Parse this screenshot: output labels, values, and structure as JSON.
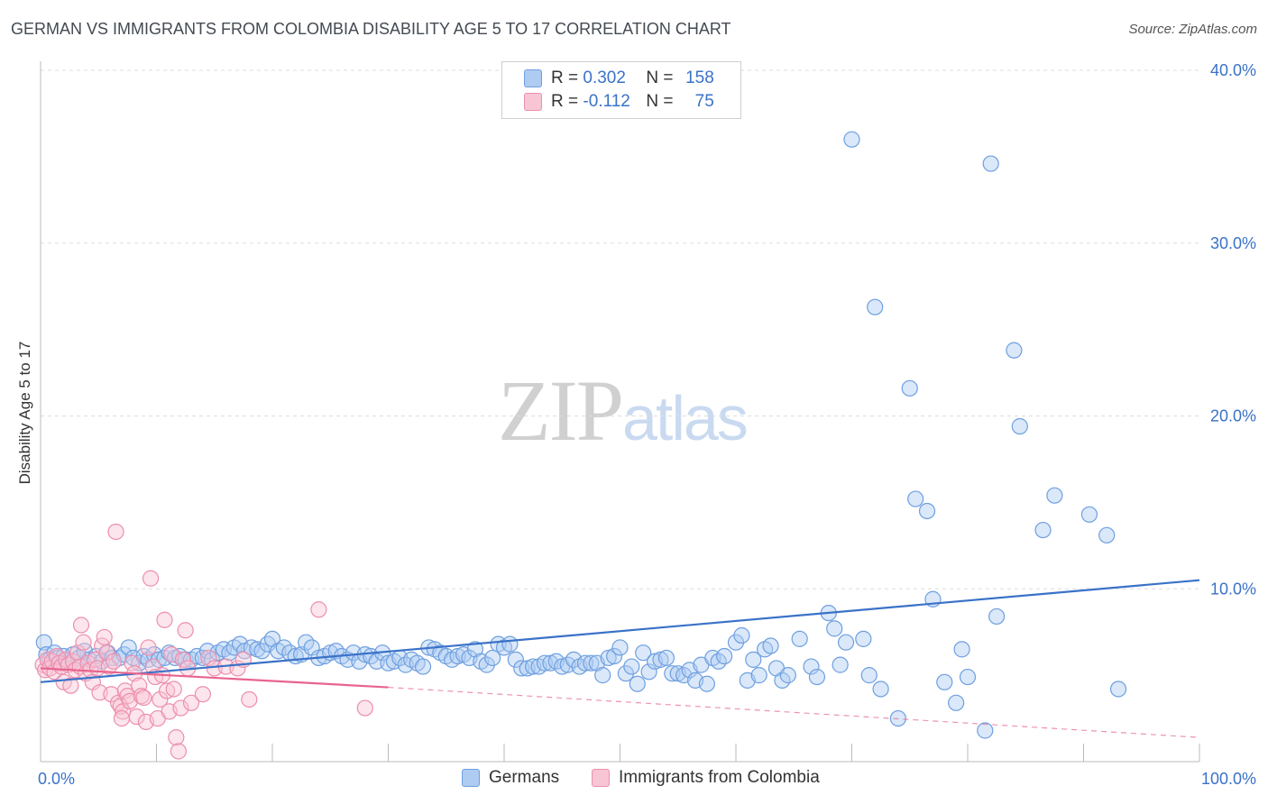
{
  "header": {
    "title": "GERMAN VS IMMIGRANTS FROM COLOMBIA DISABILITY AGE 5 TO 17 CORRELATION CHART",
    "source": "Source: ZipAtlas.com"
  },
  "watermark": {
    "zip": "ZIP",
    "atlas": "atlas"
  },
  "legend": {
    "rows": [
      {
        "r_label": "R =",
        "r_value": "0.302",
        "n_label": "N =",
        "n_value": "158",
        "color": "#aecbf2",
        "border": "#6e9fe0"
      },
      {
        "r_label": "R =",
        "r_value": "-0.112",
        "n_label": "N =",
        "n_value": "75",
        "color": "#f8c5d5",
        "border": "#ec8fae"
      }
    ]
  },
  "bottom_legend": [
    {
      "label": "Germans",
      "color": "#aecbf2",
      "border": "#6e9fe0"
    },
    {
      "label": "Immigrants from Colombia",
      "color": "#f8c5d5",
      "border": "#ec8fae"
    }
  ],
  "colors": {
    "blue": "#3a72c8",
    "blue_fill": "rgba(174,203,242,0.45)",
    "blue_stroke": "#6e9fe0",
    "pink": "#e8648f",
    "pink_fill": "rgba(248,197,213,0.45)",
    "pink_stroke": "#ec8fae",
    "grid": "#dddddd",
    "tick_text": "#3a72c8"
  },
  "chart_data": {
    "type": "scatter",
    "xlabel": "",
    "ylabel": "Disability Age 5 to 17",
    "x_tick_labels": [
      "0.0%",
      "100.0%"
    ],
    "y_tick_labels": [
      "10.0%",
      "20.0%",
      "30.0%",
      "40.0%"
    ],
    "xlim": [
      0,
      100
    ],
    "ylim": [
      0,
      40
    ],
    "y_ticks": [
      10,
      20,
      30,
      40
    ],
    "x_ticks": [
      0,
      10,
      20,
      30,
      40,
      50,
      60,
      70,
      80,
      90,
      100
    ],
    "grid": "horizontal dashed",
    "legend_position": "top-center",
    "series": [
      {
        "name": "Germans",
        "trendline": {
          "x": [
            0,
            100
          ],
          "y": [
            4.6,
            10.5
          ],
          "style": "solid"
        },
        "points": [
          [
            0.3,
            6.9
          ],
          [
            0.5,
            6.2
          ],
          [
            0.8,
            5.9
          ],
          [
            1.2,
            6.3
          ],
          [
            1.5,
            6.0
          ],
          [
            2.0,
            6.1
          ],
          [
            2.4,
            5.8
          ],
          [
            2.8,
            6.2
          ],
          [
            3.3,
            6.0
          ],
          [
            3.8,
            6.4
          ],
          [
            4.2,
            5.9
          ],
          [
            4.8,
            6.1
          ],
          [
            5.3,
            5.8
          ],
          [
            5.8,
            6.3
          ],
          [
            6.2,
            6.0
          ],
          [
            6.8,
            6.0
          ],
          [
            7.2,
            6.2
          ],
          [
            7.6,
            6.6
          ],
          [
            8.0,
            6.0
          ],
          [
            8.5,
            5.7
          ],
          [
            8.9,
            6.1
          ],
          [
            9.3,
            5.9
          ],
          [
            9.8,
            6.2
          ],
          [
            10.2,
            5.9
          ],
          [
            10.7,
            6.0
          ],
          [
            11.1,
            6.3
          ],
          [
            11.6,
            6.0
          ],
          [
            12.0,
            6.1
          ],
          [
            12.5,
            5.9
          ],
          [
            13.0,
            5.9
          ],
          [
            13.5,
            6.1
          ],
          [
            14.0,
            6.0
          ],
          [
            14.4,
            6.4
          ],
          [
            14.8,
            5.9
          ],
          [
            15.3,
            6.3
          ],
          [
            15.8,
            6.5
          ],
          [
            16.3,
            6.3
          ],
          [
            16.7,
            6.6
          ],
          [
            17.2,
            6.8
          ],
          [
            17.6,
            6.4
          ],
          [
            18.2,
            6.6
          ],
          [
            18.7,
            6.5
          ],
          [
            19.1,
            6.4
          ],
          [
            19.6,
            6.8
          ],
          [
            20.0,
            7.1
          ],
          [
            20.5,
            6.4
          ],
          [
            21.0,
            6.6
          ],
          [
            21.5,
            6.3
          ],
          [
            22.0,
            6.1
          ],
          [
            22.5,
            6.2
          ],
          [
            22.9,
            6.9
          ],
          [
            23.4,
            6.6
          ],
          [
            24.0,
            6.0
          ],
          [
            24.5,
            6.1
          ],
          [
            25.0,
            6.3
          ],
          [
            25.5,
            6.4
          ],
          [
            26.0,
            6.1
          ],
          [
            26.5,
            5.9
          ],
          [
            27.0,
            6.3
          ],
          [
            27.5,
            5.8
          ],
          [
            28.0,
            6.2
          ],
          [
            28.5,
            6.1
          ],
          [
            29.0,
            5.8
          ],
          [
            29.5,
            6.3
          ],
          [
            30.0,
            5.7
          ],
          [
            30.5,
            5.8
          ],
          [
            31.0,
            6.0
          ],
          [
            31.5,
            5.6
          ],
          [
            32.0,
            5.9
          ],
          [
            32.5,
            5.7
          ],
          [
            33.0,
            5.5
          ],
          [
            33.5,
            6.6
          ],
          [
            34.0,
            6.5
          ],
          [
            34.5,
            6.3
          ],
          [
            35.0,
            6.1
          ],
          [
            35.5,
            5.9
          ],
          [
            36.0,
            6.1
          ],
          [
            36.5,
            6.2
          ],
          [
            37.0,
            6.0
          ],
          [
            37.5,
            6.5
          ],
          [
            38.0,
            5.8
          ],
          [
            38.5,
            5.6
          ],
          [
            39.0,
            6.0
          ],
          [
            39.5,
            6.8
          ],
          [
            40.0,
            6.6
          ],
          [
            40.5,
            6.8
          ],
          [
            41.0,
            5.9
          ],
          [
            41.5,
            5.4
          ],
          [
            42.0,
            5.4
          ],
          [
            42.5,
            5.5
          ],
          [
            43.0,
            5.5
          ],
          [
            43.5,
            5.7
          ],
          [
            44.0,
            5.7
          ],
          [
            44.5,
            5.8
          ],
          [
            45.0,
            5.5
          ],
          [
            45.5,
            5.6
          ],
          [
            46.0,
            5.9
          ],
          [
            46.5,
            5.5
          ],
          [
            47.0,
            5.7
          ],
          [
            47.5,
            5.7
          ],
          [
            48.0,
            5.7
          ],
          [
            48.5,
            5.0
          ],
          [
            49.0,
            6.0
          ],
          [
            49.5,
            6.1
          ],
          [
            50.0,
            6.6
          ],
          [
            50.5,
            5.1
          ],
          [
            51.0,
            5.5
          ],
          [
            51.5,
            4.5
          ],
          [
            52.0,
            6.3
          ],
          [
            52.5,
            5.2
          ],
          [
            53.0,
            5.8
          ],
          [
            53.5,
            5.9
          ],
          [
            54.0,
            6.0
          ],
          [
            54.5,
            5.1
          ],
          [
            55.0,
            5.1
          ],
          [
            55.5,
            5.0
          ],
          [
            56.0,
            5.3
          ],
          [
            56.5,
            4.7
          ],
          [
            57.0,
            5.6
          ],
          [
            57.5,
            4.5
          ],
          [
            58.0,
            6.0
          ],
          [
            58.5,
            5.8
          ],
          [
            59.0,
            6.1
          ],
          [
            60.0,
            6.9
          ],
          [
            60.5,
            7.3
          ],
          [
            61.0,
            4.7
          ],
          [
            61.5,
            5.9
          ],
          [
            62.0,
            5.0
          ],
          [
            62.5,
            6.5
          ],
          [
            63.0,
            6.7
          ],
          [
            63.5,
            5.4
          ],
          [
            64.0,
            4.7
          ],
          [
            64.5,
            5.0
          ],
          [
            65.5,
            7.1
          ],
          [
            66.5,
            5.5
          ],
          [
            67.0,
            4.9
          ],
          [
            68.0,
            8.6
          ],
          [
            68.5,
            7.7
          ],
          [
            69.0,
            5.6
          ],
          [
            69.5,
            6.9
          ],
          [
            70.0,
            36.0
          ],
          [
            71.0,
            7.1
          ],
          [
            71.5,
            5.0
          ],
          [
            72.0,
            26.3
          ],
          [
            72.5,
            4.2
          ],
          [
            74.0,
            2.5
          ],
          [
            75.0,
            21.6
          ],
          [
            75.5,
            15.2
          ],
          [
            76.5,
            14.5
          ],
          [
            77.0,
            9.4
          ],
          [
            78.0,
            4.6
          ],
          [
            79.0,
            3.4
          ],
          [
            79.5,
            6.5
          ],
          [
            80.0,
            4.9
          ],
          [
            81.5,
            1.8
          ],
          [
            82.0,
            34.6
          ],
          [
            82.5,
            8.4
          ],
          [
            84.0,
            23.8
          ],
          [
            84.5,
            19.4
          ],
          [
            86.5,
            13.4
          ],
          [
            87.5,
            15.4
          ],
          [
            90.5,
            14.3
          ],
          [
            92.0,
            13.1
          ],
          [
            93.0,
            4.2
          ]
        ]
      },
      {
        "name": "Immigrants from Colombia",
        "trendline": {
          "x": [
            0,
            30
          ],
          "y": [
            5.4,
            4.3
          ],
          "style": "solid",
          "extension": {
            "x": [
              30,
              100
            ],
            "y": [
              4.3,
              1.4
            ],
            "style": "dashed"
          }
        },
        "points": [
          [
            0.2,
            5.6
          ],
          [
            0.4,
            5.3
          ],
          [
            0.6,
            5.9
          ],
          [
            0.8,
            5.4
          ],
          [
            1.0,
            5.8
          ],
          [
            1.2,
            5.2
          ],
          [
            1.4,
            6.1
          ],
          [
            1.6,
            5.7
          ],
          [
            1.8,
            5.5
          ],
          [
            2.0,
            4.6
          ],
          [
            2.2,
            5.9
          ],
          [
            2.4,
            5.6
          ],
          [
            2.6,
            4.4
          ],
          [
            2.8,
            5.8
          ],
          [
            3.0,
            5.3
          ],
          [
            3.2,
            6.3
          ],
          [
            3.4,
            5.5
          ],
          [
            3.5,
            7.9
          ],
          [
            3.7,
            6.9
          ],
          [
            3.9,
            5.1
          ],
          [
            4.1,
            5.7
          ],
          [
            4.3,
            5.3
          ],
          [
            4.5,
            4.6
          ],
          [
            4.7,
            5.9
          ],
          [
            4.9,
            5.4
          ],
          [
            5.1,
            4.0
          ],
          [
            5.3,
            6.7
          ],
          [
            5.5,
            7.2
          ],
          [
            5.7,
            6.3
          ],
          [
            5.9,
            5.5
          ],
          [
            6.1,
            3.9
          ],
          [
            6.3,
            5.8
          ],
          [
            6.5,
            13.3
          ],
          [
            6.7,
            3.4
          ],
          [
            6.9,
            3.2
          ],
          [
            7.1,
            2.9
          ],
          [
            7.3,
            4.1
          ],
          [
            7.5,
            3.8
          ],
          [
            7.7,
            3.5
          ],
          [
            7.9,
            5.7
          ],
          [
            8.1,
            5.1
          ],
          [
            8.3,
            2.6
          ],
          [
            8.5,
            4.4
          ],
          [
            8.7,
            3.8
          ],
          [
            8.9,
            3.7
          ],
          [
            9.1,
            2.3
          ],
          [
            9.3,
            6.6
          ],
          [
            9.5,
            10.6
          ],
          [
            9.7,
            5.5
          ],
          [
            9.9,
            4.9
          ],
          [
            10.1,
            2.5
          ],
          [
            10.3,
            3.6
          ],
          [
            10.5,
            5.0
          ],
          [
            10.7,
            8.2
          ],
          [
            10.9,
            4.1
          ],
          [
            11.1,
            2.9
          ],
          [
            11.3,
            6.2
          ],
          [
            11.5,
            4.2
          ],
          [
            11.7,
            1.4
          ],
          [
            11.9,
            0.6
          ],
          [
            12.1,
            3.1
          ],
          [
            12.3,
            5.9
          ],
          [
            12.5,
            7.6
          ],
          [
            12.7,
            5.4
          ],
          [
            13.0,
            3.4
          ],
          [
            14.0,
            3.9
          ],
          [
            14.5,
            6.0
          ],
          [
            15.0,
            5.4
          ],
          [
            16.0,
            5.5
          ],
          [
            17.0,
            5.4
          ],
          [
            17.5,
            5.9
          ],
          [
            18.0,
            3.6
          ],
          [
            24.0,
            8.8
          ],
          [
            28.0,
            3.1
          ],
          [
            7.0,
            2.5
          ]
        ]
      }
    ]
  }
}
